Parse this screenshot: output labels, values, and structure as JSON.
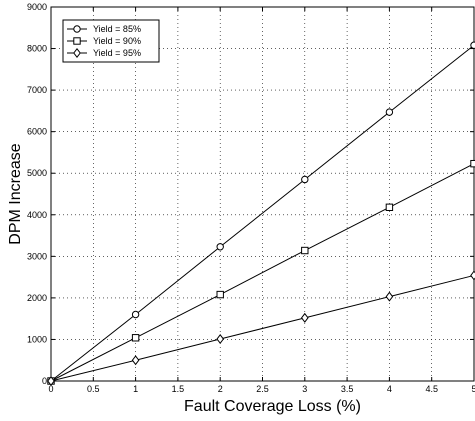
{
  "chart_data": {
    "type": "line",
    "title": "",
    "xlabel": "Fault Coverage Loss (%)",
    "ylabel": "DPM Increase",
    "xlim": [
      0,
      5
    ],
    "ylim": [
      0,
      9000
    ],
    "grid": true,
    "legend_position": "top-left",
    "x_ticks": [
      "0",
      "0.5",
      "1",
      "1.5",
      "2",
      "2.5",
      "3",
      "3.5",
      "4",
      "4.5",
      "5"
    ],
    "y_ticks": [
      "0",
      "1000",
      "2000",
      "3000",
      "4000",
      "5000",
      "6000",
      "7000",
      "8000",
      "9000"
    ],
    "x": [
      0,
      1,
      2,
      3,
      4,
      5
    ],
    "series": [
      {
        "name": "Yield = 85%",
        "marker": "circle",
        "values": [
          0,
          1600,
          3230,
          4850,
          6470,
          8080
        ]
      },
      {
        "name": "Yield = 90%",
        "marker": "square",
        "values": [
          0,
          1040,
          2080,
          3140,
          4180,
          5230
        ]
      },
      {
        "name": "Yield = 95%",
        "marker": "diamond",
        "values": [
          0,
          500,
          1010,
          1520,
          2030,
          2540
        ]
      }
    ],
    "colors": {
      "line": "#000000",
      "background": "#ffffff"
    }
  }
}
